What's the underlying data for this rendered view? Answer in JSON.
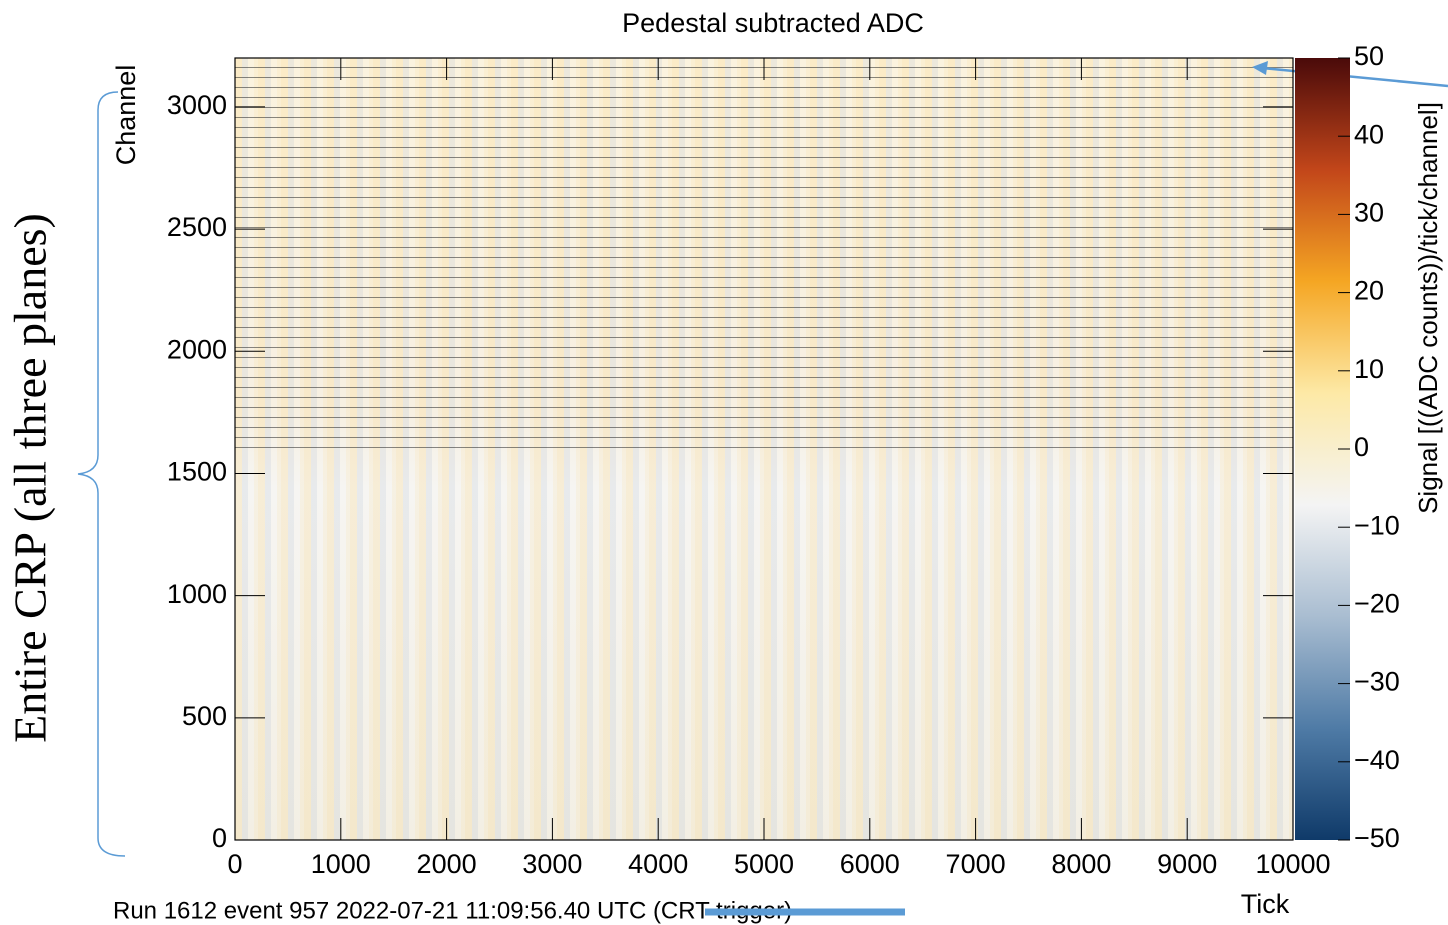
{
  "chart_data": {
    "type": "heatmap",
    "title": "Pedestal subtracted ADC",
    "x_label": "Tick",
    "y_label": "Channel",
    "colorbar_label": "Signal [((ADC counts))/tick/channel]",
    "xlim": [
      0,
      10000
    ],
    "xticks": [
      0,
      1000,
      2000,
      3000,
      4000,
      5000,
      6000,
      7000,
      8000,
      9000,
      10000
    ],
    "ylim": [
      0,
      3200
    ],
    "yticks": [
      0,
      500,
      1000,
      1500,
      2000,
      2500,
      3000
    ],
    "zlim": [
      -50,
      50
    ],
    "zticks": [
      {
        "value": -50,
        "label": "−50"
      },
      {
        "value": -40,
        "label": "−40"
      },
      {
        "value": -30,
        "label": "−30"
      },
      {
        "value": -20,
        "label": "−20"
      },
      {
        "value": -10,
        "label": "−10"
      },
      0,
      10,
      20,
      30,
      40,
      50
    ],
    "colormap": [
      "#0f3a69",
      "#4f7ba6",
      "#a9bdd1",
      "#f4f4f4",
      "#fde9a6",
      "#f5a623",
      "#c2461a",
      "#4a0a0a"
    ],
    "footer": "Run 1612 event 957 2022-07-21 11:09:56.40 UTC (CRT trigger)",
    "annotation": "Entire CRP (all three planes)"
  }
}
